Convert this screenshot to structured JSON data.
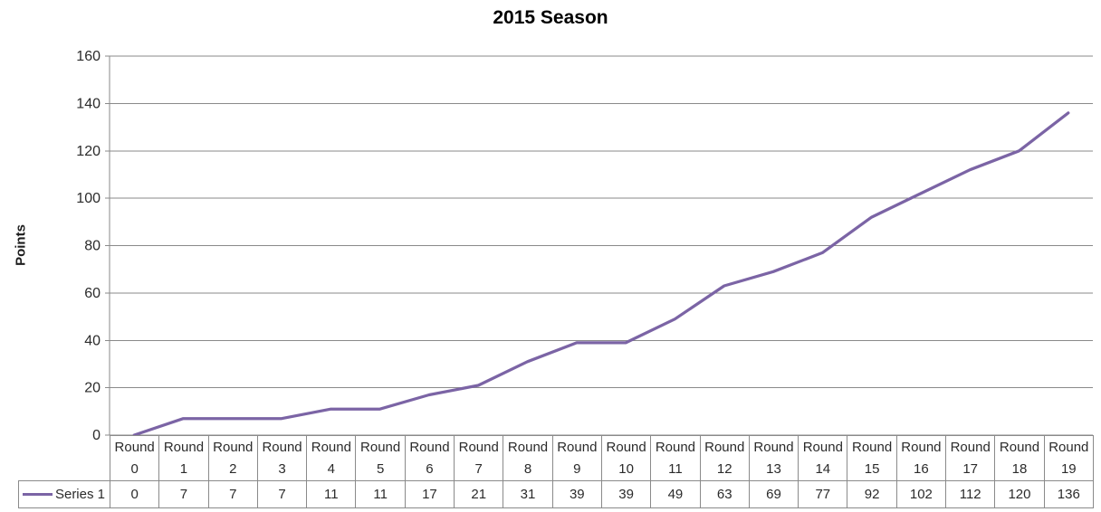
{
  "chart_data": {
    "type": "line",
    "title": "2015 Season",
    "xlabel": "",
    "ylabel": "Points",
    "ylim": [
      0,
      160
    ],
    "ytick_step": 20,
    "grid": true,
    "legend_position": "data-table-left",
    "data_table_shown": true,
    "categories": [
      "Round 0",
      "Round 1",
      "Round 2",
      "Round 3",
      "Round 4",
      "Round 5",
      "Round 6",
      "Round 7",
      "Round 8",
      "Round 9",
      "Round 10",
      "Round 11",
      "Round 12",
      "Round 13",
      "Round 14",
      "Round 15",
      "Round 16",
      "Round 17",
      "Round 18",
      "Round 19"
    ],
    "series": [
      {
        "name": "Series 1",
        "color": "#7b64a5",
        "values": [
          0,
          7,
          7,
          7,
          11,
          11,
          17,
          21,
          31,
          39,
          39,
          49,
          63,
          69,
          77,
          92,
          102,
          112,
          120,
          136
        ]
      }
    ]
  },
  "colors": {
    "line": "#7b64a5",
    "grid": "#8a8a8a",
    "tick_text": "#2b2b2b",
    "title_text": "#000000",
    "background": "#ffffff"
  }
}
